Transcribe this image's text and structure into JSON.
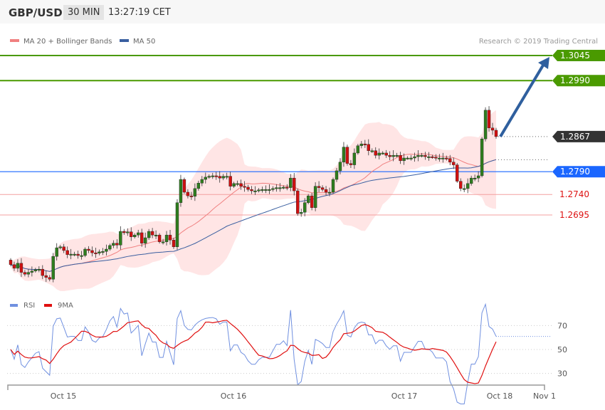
{
  "header": {
    "symbol": "GBP/USD",
    "timeframe": "30 MIN",
    "time": "13:27:19 CET"
  },
  "legend": {
    "bb": "MA 20 + Bollinger Bands",
    "ma50": "MA 50",
    "copyright": "Research © 2019 Trading Central"
  },
  "colors": {
    "up": "#2e7d1e",
    "down": "#d01010",
    "band": "#ffdede",
    "ma20": "#f08080",
    "ma50": "#3a5fa0",
    "target": "#4a9a00",
    "pivot": "#1a66ff",
    "last": "#333333",
    "support": "#dd1111",
    "arrow": "#2f5f9e",
    "rsi": "#7090e0",
    "rsi_ma": "#e01010"
  },
  "chart_data": [
    {
      "type": "candlestick",
      "title": "GBP/USD 30 MIN",
      "closes": [
        1.2586,
        1.2578,
        1.2589,
        1.2569,
        1.2565,
        1.2569,
        1.2572,
        1.2575,
        1.2576,
        1.2562,
        1.2558,
        1.2554,
        1.2604,
        1.2623,
        1.2625,
        1.2617,
        1.2608,
        1.2609,
        1.2609,
        1.2606,
        1.2606,
        1.262,
        1.2617,
        1.2612,
        1.2611,
        1.2614,
        1.2615,
        1.262,
        1.2628,
        1.2633,
        1.2629,
        1.2659,
        1.2656,
        1.2658,
        1.2647,
        1.2651,
        1.2656,
        1.2633,
        1.2645,
        1.2659,
        1.2651,
        1.2651,
        1.2636,
        1.2636,
        1.2651,
        1.264,
        1.2625,
        1.2722,
        1.2773,
        1.2745,
        1.2737,
        1.2736,
        1.2753,
        1.2765,
        1.2773,
        1.2778,
        1.278,
        1.2781,
        1.278,
        1.2776,
        1.278,
        1.278,
        1.2758,
        1.2764,
        1.2764,
        1.2758,
        1.2756,
        1.2751,
        1.2748,
        1.2748,
        1.275,
        1.2751,
        1.2751,
        1.2751,
        1.2753,
        1.2755,
        1.2755,
        1.2756,
        1.2755,
        1.2776,
        1.2748,
        1.2698,
        1.2701,
        1.2722,
        1.2737,
        1.2711,
        1.2758,
        1.2755,
        1.2751,
        1.2745,
        1.2745,
        1.2773,
        1.2792,
        1.2811,
        1.2844,
        1.2808,
        1.2805,
        1.2831,
        1.2847,
        1.2851,
        1.285,
        1.2836,
        1.2836,
        1.2826,
        1.2831,
        1.2831,
        1.2826,
        1.2823,
        1.2826,
        1.2826,
        1.2814,
        1.282,
        1.282,
        1.282,
        1.2823,
        1.2826,
        1.2826,
        1.2823,
        1.2823,
        1.2822,
        1.282,
        1.282,
        1.282,
        1.2819,
        1.2811,
        1.2805,
        1.2769,
        1.2753,
        1.2753,
        1.2764,
        1.2776,
        1.2776,
        1.2781,
        1.2862,
        1.2925,
        1.2886,
        1.2881,
        1.2867
      ],
      "x_ticks": [
        "Oct 15",
        "Oct 16",
        "Oct 17",
        "Oct 18",
        "Nov 1"
      ],
      "levels": [
        {
          "value": "1.3045",
          "kind": "target"
        },
        {
          "value": "1.2990",
          "kind": "target"
        },
        {
          "value": "1.2867",
          "kind": "last"
        },
        {
          "value": "1.2790",
          "kind": "pivot"
        },
        {
          "value": "1.2740",
          "kind": "support"
        },
        {
          "value": "1.2695",
          "kind": "support"
        }
      ],
      "indicators": [
        "MA 20 + Bollinger Bands",
        "MA 50"
      ],
      "forecast_arrow": {
        "from": 1.2867,
        "to": 1.3045
      }
    },
    {
      "type": "line",
      "legend": [
        "RSI",
        "9MA"
      ],
      "y_ticks": [
        "70",
        "50",
        "30"
      ],
      "yrange": [
        20,
        80
      ]
    }
  ]
}
